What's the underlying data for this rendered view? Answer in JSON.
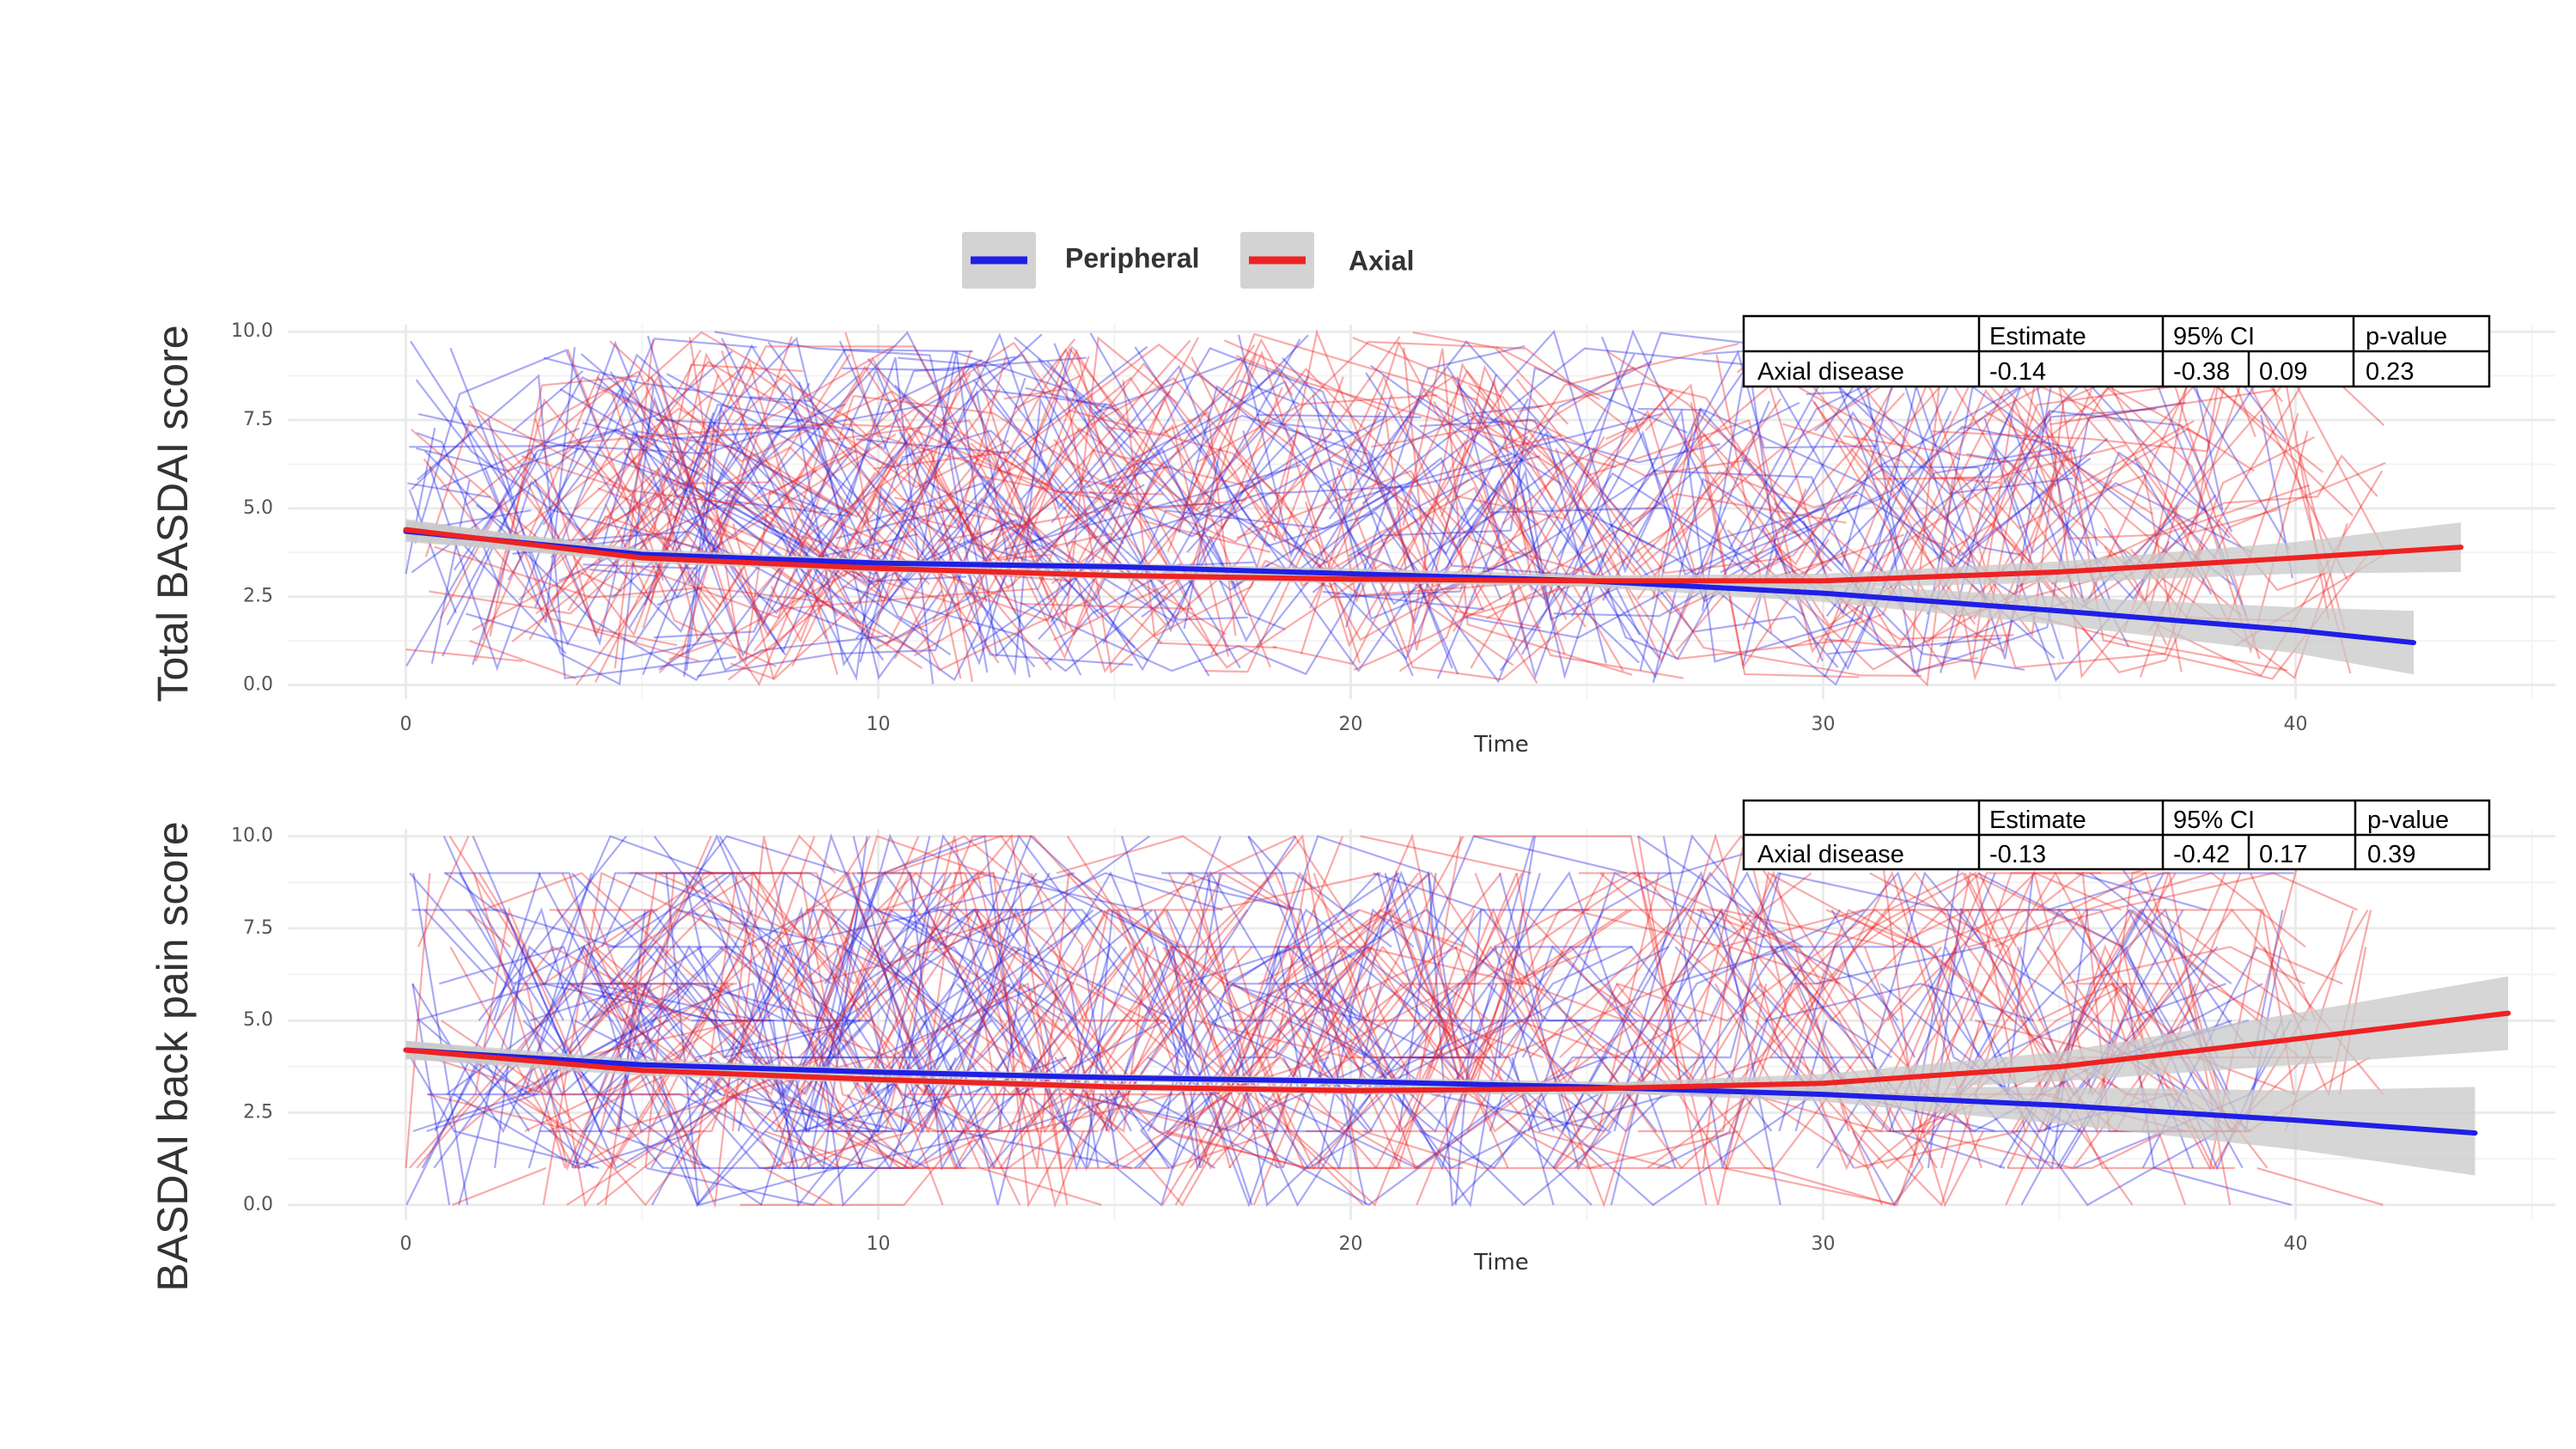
{
  "colors": {
    "peripheral": "#1f1fe6",
    "axial": "#ee2222",
    "ribbon": "#c8c8c8",
    "grid": "#ebebeb",
    "legend_key_bg": "#d3d3d3"
  },
  "legend": [
    {
      "label": "Peripheral",
      "color_key": "peripheral"
    },
    {
      "label": "Axial",
      "color_key": "axial"
    }
  ],
  "chart_data": [
    {
      "type": "line",
      "name": "total",
      "xlabel": "Time",
      "ylabel": "Total BASDAI score",
      "xlim": [
        -2.5,
        45.5
      ],
      "ylim": [
        -0.4,
        10.2
      ],
      "x_ticks": [
        0,
        10,
        20,
        30,
        40
      ],
      "y_ticks": [
        0.0,
        2.5,
        5.0,
        7.5,
        10.0
      ],
      "y_tick_labels": [
        "0.0",
        "2.5",
        "5.0",
        "7.5",
        "10.0"
      ],
      "grid": true,
      "individual_trajectories": {
        "description": "many thin semi-transparent per-patient lines",
        "peripheral_x_range": [
          0,
          40
        ],
        "axial_x_range": [
          0,
          42
        ]
      },
      "series": [
        {
          "name": "Peripheral",
          "color_key": "peripheral",
          "x": [
            0,
            5,
            10,
            15,
            20,
            25,
            30,
            35,
            40,
            42.5
          ],
          "y": [
            4.35,
            3.7,
            3.45,
            3.35,
            3.15,
            2.95,
            2.6,
            2.1,
            1.55,
            1.2
          ],
          "ci_low": [
            4.05,
            3.55,
            3.35,
            3.25,
            3.0,
            2.78,
            2.35,
            1.7,
            0.9,
            0.3
          ],
          "ci_high": [
            4.65,
            3.85,
            3.55,
            3.45,
            3.3,
            3.12,
            2.85,
            2.5,
            2.2,
            2.1
          ]
        },
        {
          "name": "Axial",
          "color_key": "axial",
          "x": [
            0,
            5,
            10,
            15,
            20,
            25,
            30,
            35,
            40,
            43.5
          ],
          "y": [
            4.4,
            3.6,
            3.3,
            3.1,
            3.0,
            2.95,
            2.95,
            3.2,
            3.6,
            3.9
          ],
          "ci_low": [
            4.1,
            3.45,
            3.2,
            3.0,
            2.88,
            2.8,
            2.75,
            2.9,
            3.15,
            3.2
          ],
          "ci_high": [
            4.7,
            3.75,
            3.4,
            3.2,
            3.12,
            3.1,
            3.15,
            3.5,
            4.05,
            4.6
          ]
        }
      ],
      "stats_table": {
        "headers": [
          "",
          "Estimate",
          "95% CI",
          "",
          "p-value"
        ],
        "rows": [
          [
            "Axial disease",
            "-0.14",
            "-0.38",
            "0.09",
            "0.23"
          ]
        ]
      }
    },
    {
      "type": "line",
      "name": "backpain",
      "xlabel": "Time",
      "ylabel": "BASDAI back pain score",
      "xlim": [
        -2.5,
        45.5
      ],
      "ylim": [
        -0.4,
        10.2
      ],
      "x_ticks": [
        0,
        10,
        20,
        30,
        40
      ],
      "y_ticks": [
        0.0,
        2.5,
        5.0,
        7.5,
        10.0
      ],
      "y_tick_labels": [
        "0.0",
        "2.5",
        "5.0",
        "7.5",
        "10.0"
      ],
      "grid": true,
      "individual_trajectories": {
        "description": "many thin semi-transparent per-patient lines",
        "peripheral_x_range": [
          0,
          40
        ],
        "axial_x_range": [
          0,
          42
        ]
      },
      "series": [
        {
          "name": "Peripheral",
          "color_key": "peripheral",
          "x": [
            0,
            5,
            10,
            15,
            20,
            25,
            30,
            35,
            40,
            43.8
          ],
          "y": [
            4.2,
            3.8,
            3.6,
            3.45,
            3.35,
            3.2,
            3.0,
            2.7,
            2.3,
            1.95
          ],
          "ci_low": [
            3.95,
            3.65,
            3.5,
            3.35,
            3.25,
            3.05,
            2.8,
            2.2,
            1.5,
            0.8
          ],
          "ci_high": [
            4.45,
            3.95,
            3.7,
            3.55,
            3.45,
            3.35,
            3.2,
            3.2,
            3.1,
            3.2
          ]
        },
        {
          "name": "Axial",
          "color_key": "axial",
          "x": [
            0,
            5,
            10,
            15,
            20,
            25,
            30,
            35,
            40,
            44.5
          ],
          "y": [
            4.2,
            3.65,
            3.4,
            3.2,
            3.1,
            3.15,
            3.3,
            3.75,
            4.5,
            5.2
          ],
          "ci_low": [
            3.95,
            3.5,
            3.3,
            3.1,
            3.0,
            3.0,
            3.05,
            3.35,
            3.8,
            4.2
          ],
          "ci_high": [
            4.45,
            3.8,
            3.5,
            3.3,
            3.2,
            3.3,
            3.55,
            4.15,
            5.2,
            6.2
          ]
        }
      ],
      "stats_table": {
        "headers": [
          "",
          "Estimate",
          "95% CI",
          "",
          "p-value"
        ],
        "rows": [
          [
            "Axial disease",
            "-0.13",
            "-0.42",
            "0.17",
            "0.39"
          ]
        ]
      }
    }
  ]
}
